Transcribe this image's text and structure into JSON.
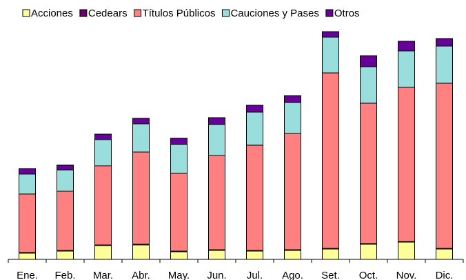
{
  "chart_data": {
    "type": "stacked_bar",
    "categories": [
      "Ene.",
      "Feb.",
      "Mar.",
      "Abr.",
      "May.",
      "Jun.",
      "Jul.",
      "Ago.",
      "Set.",
      "Oct.",
      "Nov.",
      "Dic."
    ],
    "series": [
      {
        "name": "Acciones",
        "color": "#ffff99",
        "values": [
          9,
          12,
          20,
          21,
          11,
          13,
          12,
          13,
          15,
          22,
          25,
          15
        ]
      },
      {
        "name": "Cedears",
        "color": "#660066",
        "values": [
          1,
          1,
          1,
          1,
          1,
          1,
          1,
          1,
          1,
          1,
          1,
          1
        ]
      },
      {
        "name": "Títulos Públicos",
        "color": "#ff8080",
        "values": [
          85,
          86,
          115,
          134,
          113,
          137,
          153,
          169,
          255,
          204,
          224,
          240
        ]
      },
      {
        "name": "Cauciones y Pases",
        "color": "#99dddd",
        "values": [
          29,
          31,
          38,
          41,
          42,
          45,
          48,
          45,
          52,
          53,
          53,
          54
        ]
      },
      {
        "name": "Otros",
        "color": "#660099",
        "values": [
          8,
          7,
          8,
          8,
          9,
          10,
          10,
          10,
          8,
          16,
          14,
          11
        ]
      }
    ],
    "ylim": [
      0,
      330
    ],
    "legend": "top"
  }
}
